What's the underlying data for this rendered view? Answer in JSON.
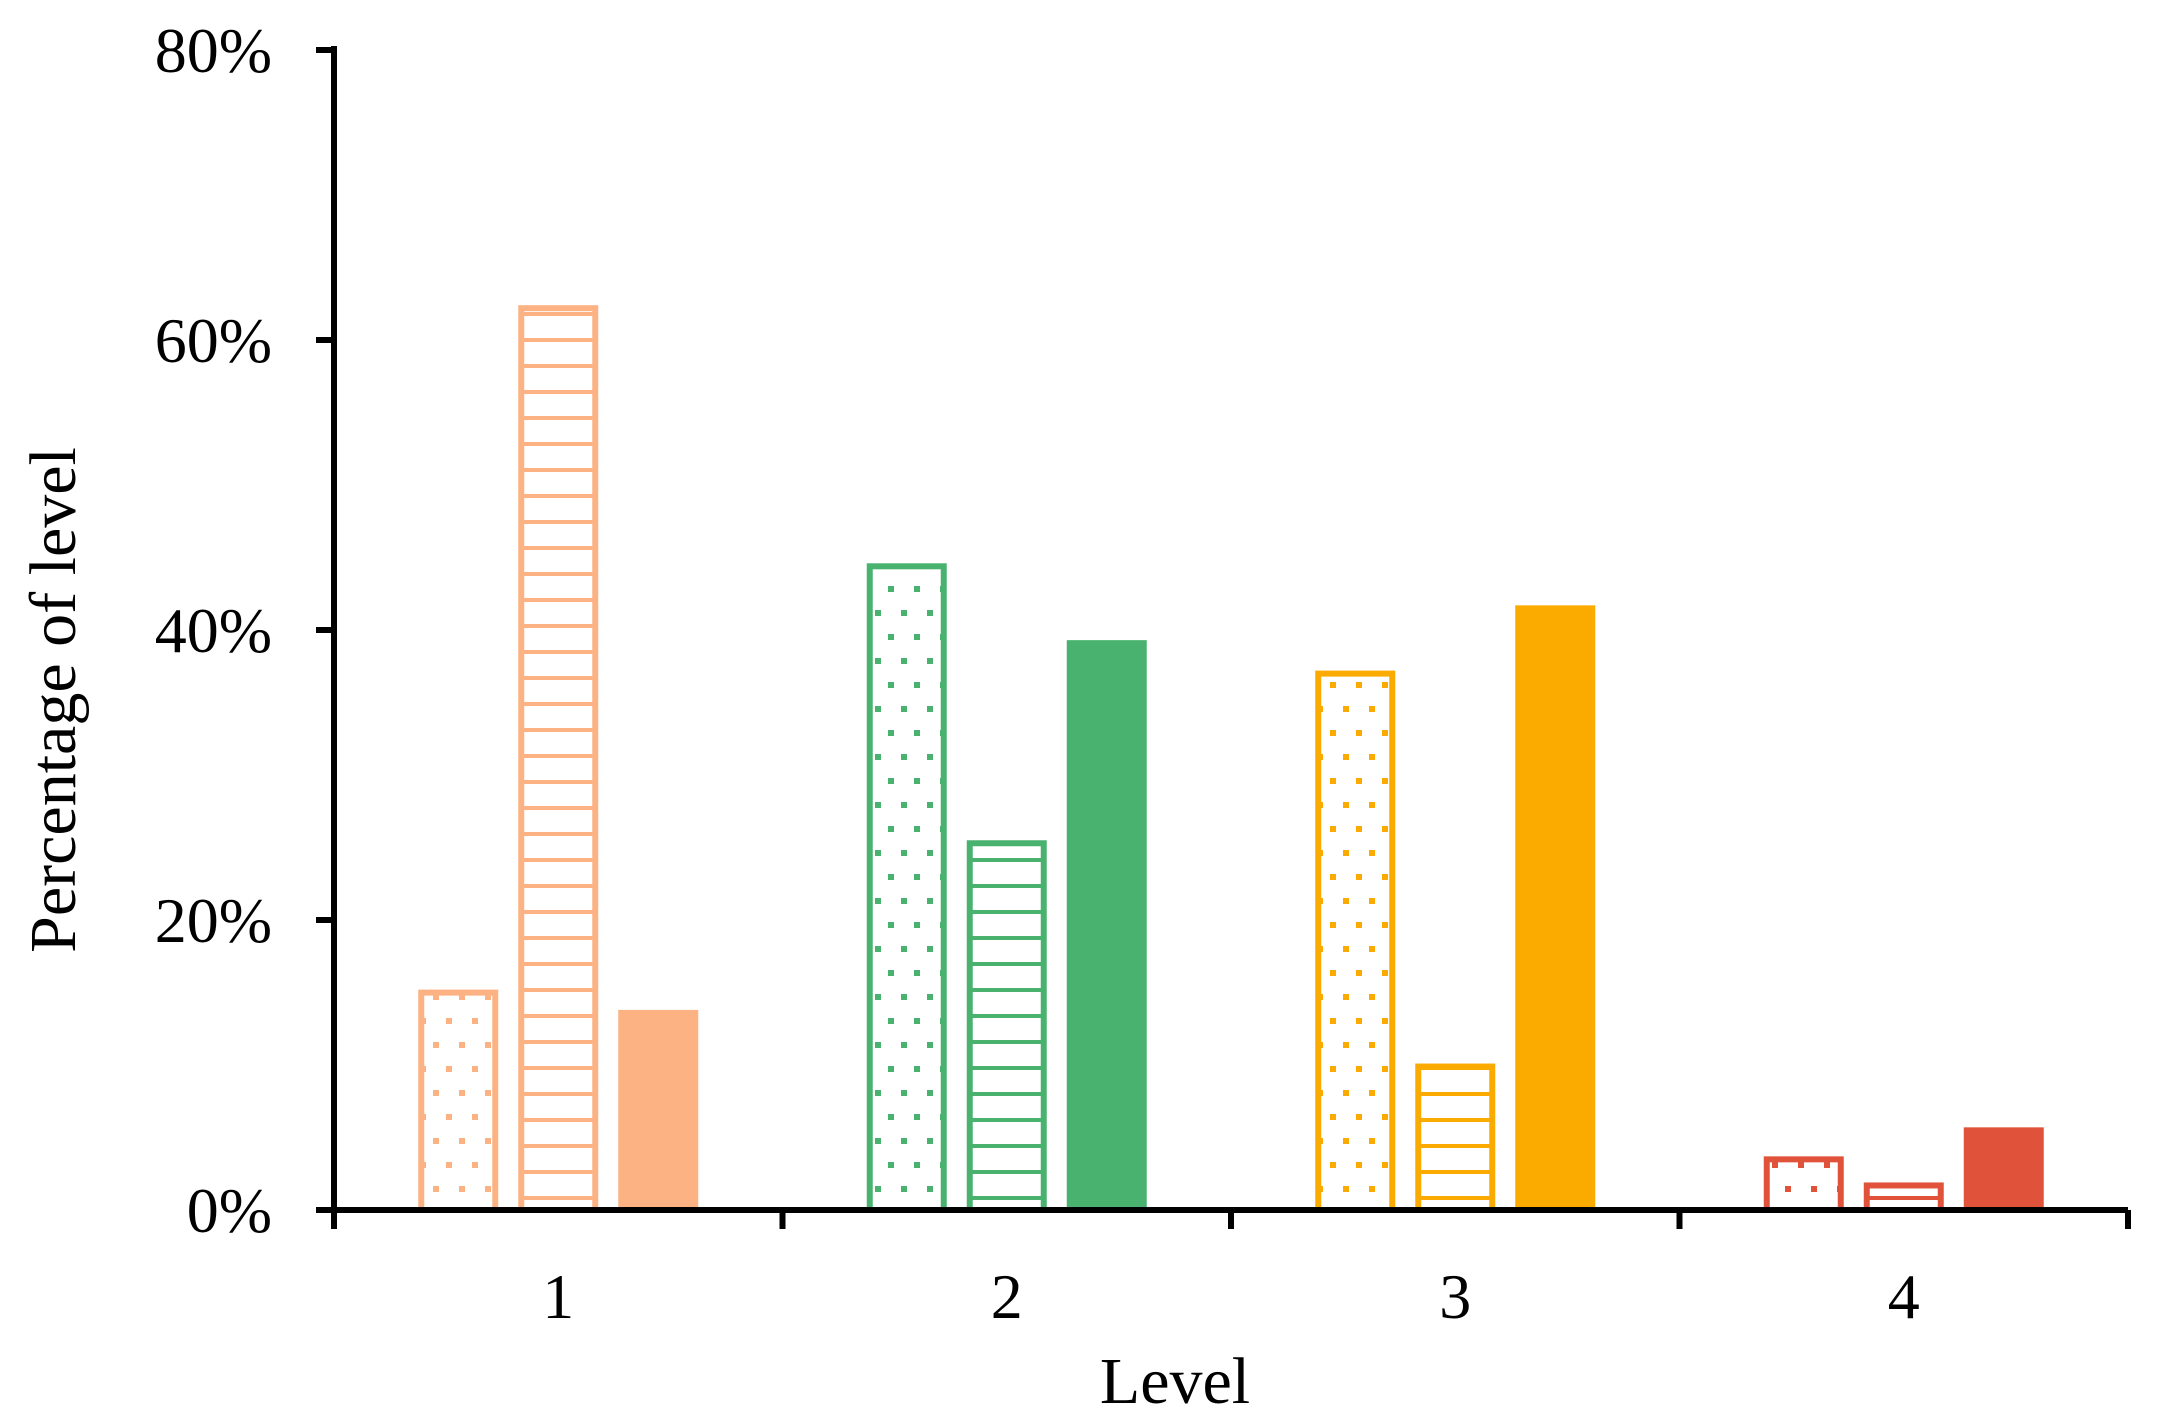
{
  "chart_data": {
    "type": "bar",
    "title": "",
    "xlabel": "Level",
    "ylabel": "Percentage of level",
    "categories": [
      "1",
      "2",
      "3",
      "4"
    ],
    "ylim": [
      0,
      80
    ],
    "yticks": [
      "0%",
      "20%",
      "40%",
      "60%",
      "80%"
    ],
    "ytick_values": [
      0,
      20,
      40,
      60,
      80
    ],
    "grid": false,
    "legend": "none",
    "series": [
      {
        "pattern": "dots",
        "values": [
          15.2,
          44.6,
          37.2,
          3.7
        ]
      },
      {
        "pattern": "horizontal-lines",
        "values": [
          62.4,
          25.5,
          10.1,
          1.9
        ]
      },
      {
        "pattern": "solid",
        "values": [
          13.8,
          39.3,
          41.7,
          5.7
        ]
      }
    ],
    "category_colors": [
      "#FCB283",
      "#48B26E",
      "#FBAA00",
      "#E0523A"
    ]
  }
}
